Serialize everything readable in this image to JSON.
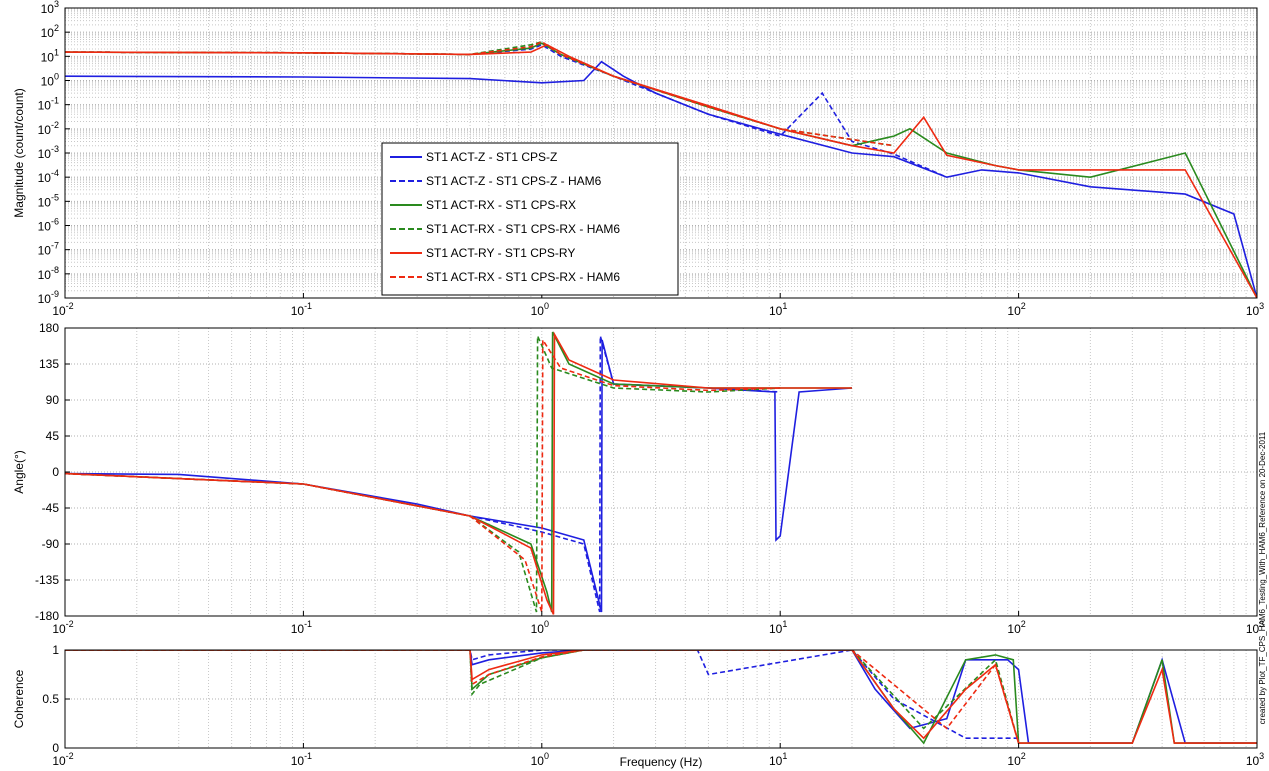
{
  "chart_data": [
    {
      "type": "line",
      "ylabel": "Magnitude (count/count)",
      "xlabel": "",
      "xscale": "log",
      "yscale": "log",
      "xlim": [
        0.01,
        1000
      ],
      "ylim": [
        1e-09,
        1000
      ],
      "grid": true,
      "legend": {
        "placement": "center-left",
        "entries": [
          {
            "label": "ST1 ACT-Z - ST1 CPS-Z",
            "color": "#1f1fe0",
            "style": "solid"
          },
          {
            "label": "ST1 ACT-Z - ST1 CPS-Z - HAM6",
            "color": "#1f1fe0",
            "style": "dashed"
          },
          {
            "label": "ST1 ACT-RX - ST1 CPS-RX",
            "color": "#2a8a1e",
            "style": "solid"
          },
          {
            "label": "ST1 ACT-RX - ST1 CPS-RX - HAM6",
            "color": "#2a8a1e",
            "style": "dashed"
          },
          {
            "label": "ST1 ACT-RY - ST1 CPS-RY",
            "color": "#ee2a12",
            "style": "solid"
          },
          {
            "label": "ST1 ACT-RX - ST1 CPS-RX - HAM6",
            "color": "#ee2a12",
            "style": "dashed"
          }
        ]
      },
      "series": [
        {
          "color": "#1f1fe0",
          "style": "solid",
          "x": [
            0.01,
            0.1,
            0.5,
            1.0,
            1.5,
            1.78,
            2.2,
            3,
            5,
            10,
            20,
            30,
            50,
            70,
            100,
            200,
            500,
            800,
            1000
          ],
          "y": [
            1.5,
            1.4,
            1.2,
            0.8,
            1.0,
            6,
            1.5,
            0.3,
            0.04,
            0.006,
            0.001,
            0.0007,
            0.0001,
            0.0002,
            0.00015,
            4e-05,
            2e-05,
            3e-06,
            1e-09
          ]
        },
        {
          "color": "#1f1fe0",
          "style": "dashed",
          "x": [
            0.01,
            0.1,
            0.5,
            0.9,
            1.0,
            1.2,
            2,
            5,
            10,
            15,
            20,
            30,
            50
          ],
          "y": [
            15,
            14,
            12,
            20,
            30,
            10,
            1.5,
            0.04,
            0.005,
            0.3,
            0.003,
            0.0009,
            0.0001
          ]
        },
        {
          "color": "#2a8a1e",
          "style": "solid",
          "x": [
            0.01,
            0.1,
            0.5,
            0.9,
            1.0,
            1.2,
            2,
            5,
            10,
            20,
            30,
            35,
            50,
            80,
            100,
            200,
            500,
            1000
          ],
          "y": [
            15,
            14,
            12,
            22,
            35,
            12,
            1.5,
            0.08,
            0.01,
            0.002,
            0.005,
            0.01,
            0.001,
            0.0003,
            0.0002,
            0.0001,
            0.001,
            1e-09
          ]
        },
        {
          "color": "#2a8a1e",
          "style": "dashed",
          "x": [
            0.01,
            0.1,
            0.5,
            0.9,
            1.0,
            1.2,
            2,
            5,
            10,
            30
          ],
          "y": [
            15,
            14,
            12,
            30,
            40,
            12,
            1.5,
            0.08,
            0.01,
            0.002
          ]
        },
        {
          "color": "#ee2a12",
          "style": "solid",
          "x": [
            0.01,
            0.1,
            0.5,
            0.9,
            1.05,
            1.3,
            2,
            5,
            10,
            20,
            30,
            40,
            50,
            80,
            100,
            200,
            500,
            1000
          ],
          "y": [
            15,
            14,
            12,
            15,
            30,
            10,
            1.5,
            0.09,
            0.01,
            0.002,
            0.001,
            0.03,
            0.0008,
            0.0003,
            0.0002,
            0.0002,
            0.0002,
            1e-09
          ]
        },
        {
          "color": "#ee2a12",
          "style": "dashed",
          "x": [
            0.01,
            0.1,
            0.5,
            0.9,
            1.0,
            1.2,
            2,
            5,
            10,
            30
          ],
          "y": [
            15,
            14,
            12,
            25,
            40,
            12,
            1.5,
            0.08,
            0.01,
            0.002
          ]
        }
      ]
    },
    {
      "type": "line",
      "ylabel": "Angle(°)",
      "xlabel": "",
      "xscale": "log",
      "xlim": [
        0.01,
        1000
      ],
      "ylim": [
        -180,
        180
      ],
      "yticks": [
        -180,
        -135,
        -90,
        -45,
        0,
        45,
        90,
        135,
        180
      ],
      "grid": true,
      "side_text": "created by Plot_TF_CPS_HAM6_Testing_With_HAM6_Reference on 20-Dec-2011",
      "series": [
        {
          "color": "#1f1fe0",
          "style": "solid",
          "x": [
            0.01,
            0.03,
            0.1,
            0.3,
            0.5,
            1.0,
            1.5,
            1.78,
            1.79,
            2.0,
            5,
            9.5,
            9.6,
            10,
            12,
            20
          ],
          "y": [
            -2,
            -3,
            -15,
            -40,
            -55,
            -70,
            -85,
            -175,
            165,
            110,
            105,
            100,
            -85,
            -80,
            100,
            105
          ]
        },
        {
          "color": "#1f1fe0",
          "style": "dashed",
          "x": [
            0.01,
            0.1,
            0.5,
            1.0,
            1.5,
            1.75,
            1.76,
            2.0,
            5,
            10
          ],
          "y": [
            -2,
            -15,
            -55,
            -75,
            -90,
            -175,
            170,
            110,
            105,
            100
          ]
        },
        {
          "color": "#2a8a1e",
          "style": "solid",
          "x": [
            0.01,
            0.1,
            0.5,
            0.9,
            1.05,
            1.1,
            1.11,
            1.3,
            2,
            5,
            10,
            20
          ],
          "y": [
            -2,
            -15,
            -55,
            -90,
            -150,
            -175,
            175,
            135,
            110,
            105,
            105,
            105
          ]
        },
        {
          "color": "#2a8a1e",
          "style": "dashed",
          "x": [
            0.01,
            0.1,
            0.5,
            0.8,
            0.95,
            0.96,
            1.1,
            2,
            5,
            10
          ],
          "y": [
            -2,
            -15,
            -55,
            -100,
            -175,
            170,
            130,
            105,
            100,
            105
          ]
        },
        {
          "color": "#ee2a12",
          "style": "solid",
          "x": [
            0.01,
            0.1,
            0.5,
            0.9,
            1.05,
            1.12,
            1.13,
            1.3,
            2,
            5,
            10,
            20
          ],
          "y": [
            -2,
            -15,
            -55,
            -95,
            -160,
            -178,
            172,
            140,
            115,
            105,
            105,
            105
          ]
        },
        {
          "color": "#ee2a12",
          "style": "dashed",
          "x": [
            0.01,
            0.1,
            0.5,
            0.85,
            1.0,
            1.01,
            1.2,
            2,
            5,
            10
          ],
          "y": [
            -2,
            -15,
            -55,
            -110,
            -175,
            165,
            130,
            108,
            102,
            105
          ]
        }
      ]
    },
    {
      "type": "line",
      "ylabel": "Coherence",
      "xlabel": "Frequency (Hz)",
      "xscale": "log",
      "xlim": [
        0.01,
        1000
      ],
      "ylim": [
        0,
        1
      ],
      "yticks": [
        0,
        0.5,
        1
      ],
      "grid": true,
      "series": [
        {
          "color": "#1f1fe0",
          "style": "solid",
          "x": [
            0.01,
            0.5,
            0.51,
            0.6,
            1.0,
            1.5,
            5,
            20,
            25,
            35,
            50,
            60,
            90,
            100,
            110,
            300,
            400,
            500,
            1000
          ],
          "y": [
            1,
            1,
            0.85,
            0.9,
            0.97,
            1,
            1,
            1,
            0.6,
            0.2,
            0.3,
            0.9,
            0.9,
            0.8,
            0.05,
            0.05,
            0.9,
            0.05,
            0.05
          ]
        },
        {
          "color": "#1f1fe0",
          "style": "dashed",
          "x": [
            0.01,
            0.5,
            0.51,
            0.6,
            1.0,
            1.5,
            4.5,
            5,
            20,
            30,
            60,
            100
          ],
          "y": [
            1,
            1,
            0.9,
            0.95,
            1,
            1,
            1,
            0.75,
            1,
            0.5,
            0.1,
            0.1
          ]
        },
        {
          "color": "#2a8a1e",
          "style": "solid",
          "x": [
            0.01,
            0.5,
            0.51,
            0.6,
            1.0,
            1.5,
            20,
            30,
            40,
            60,
            80,
            95,
            100,
            110,
            300,
            400,
            450,
            1000
          ],
          "y": [
            1,
            1,
            0.6,
            0.75,
            0.92,
            1,
            1,
            0.4,
            0.05,
            0.9,
            0.95,
            0.9,
            0.05,
            0.05,
            0.05,
            0.9,
            0.05,
            0.05
          ]
        },
        {
          "color": "#2a8a1e",
          "style": "dashed",
          "x": [
            0.01,
            0.5,
            0.51,
            0.55,
            1.0,
            1.5,
            20,
            40,
            80,
            100
          ],
          "y": [
            1,
            1,
            0.55,
            0.65,
            0.92,
            1,
            1,
            0.2,
            0.9,
            0.05
          ]
        },
        {
          "color": "#ee2a12",
          "style": "solid",
          "x": [
            0.01,
            0.5,
            0.51,
            0.6,
            1.0,
            1.5,
            20,
            30,
            40,
            60,
            80,
            100,
            110,
            300,
            400,
            450,
            1000
          ],
          "y": [
            1,
            1,
            0.7,
            0.8,
            0.95,
            1,
            1,
            0.4,
            0.1,
            0.6,
            0.85,
            0.05,
            0.05,
            0.05,
            0.8,
            0.05,
            0.05
          ]
        },
        {
          "color": "#ee2a12",
          "style": "dashed",
          "x": [
            0.01,
            0.5,
            0.51,
            0.6,
            1.0,
            1.5,
            20,
            50,
            80,
            100
          ],
          "y": [
            1,
            1,
            0.65,
            0.75,
            0.93,
            1,
            1,
            0.2,
            0.85,
            0.05
          ]
        }
      ]
    }
  ]
}
